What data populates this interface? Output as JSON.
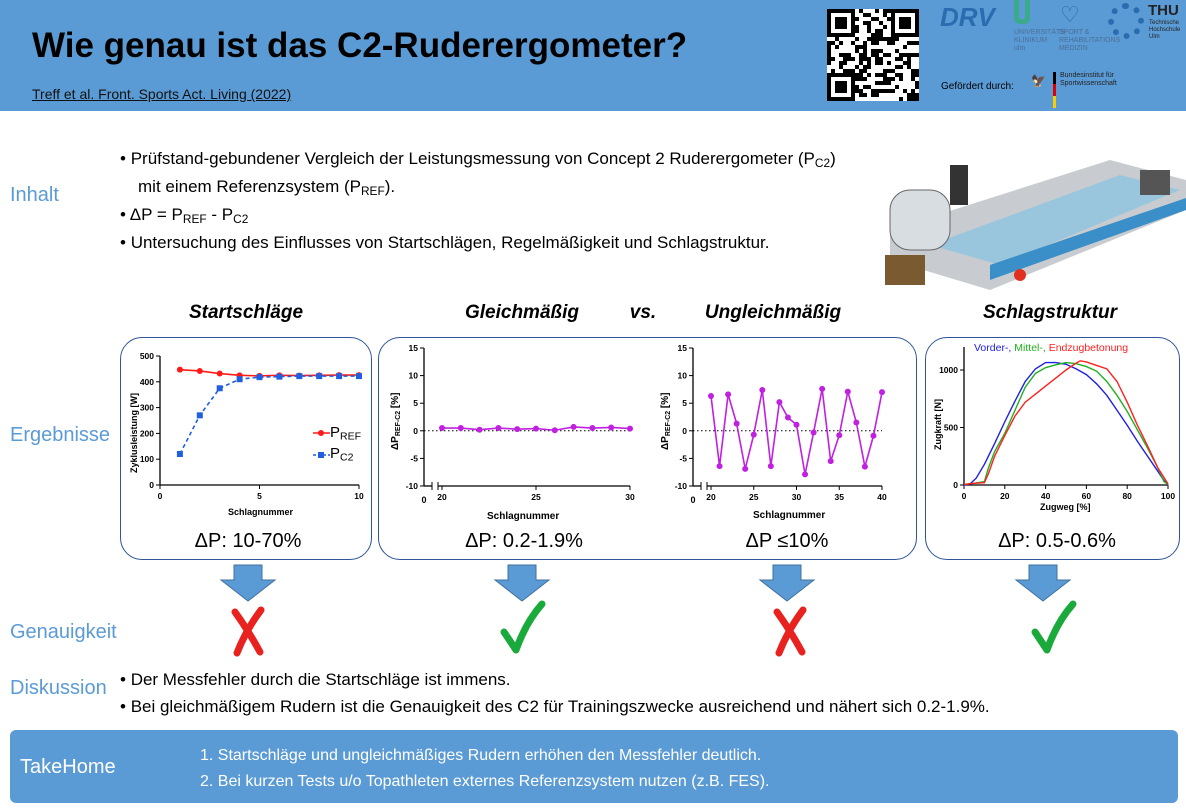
{
  "header": {
    "title": "Wie genau ist das C2-Ruderergometer?",
    "citation": "Treff et al. Front. Sports Act. Living (2022)",
    "funded_by": "Gefördert durch:",
    "logos": {
      "drv": "DRV",
      "uni": "UNIVERSITÄTS KLINIKUM ulm",
      "sport": "SPORT & REHABILITATIONS MEDIZIN",
      "thu": "THU",
      "thu_sub": "Technische Hochschule Ulm",
      "bisp": "Bundesinstitut für Sportwissenschaft"
    },
    "colors": {
      "background": "#5b9bd5"
    }
  },
  "sections": {
    "inhalt": "Inhalt",
    "ergebnisse": "Ergebnisse",
    "genauigkeit": "Genauigkeit",
    "diskussion": "Diskussion"
  },
  "inhalt": {
    "b1_a": "Prüfstand-gebundener Vergleich der Leistungsmessung von Concept 2 Ruderergometer (P",
    "b1_sub": "C2",
    "b1_b": ")",
    "b1_c": "mit einem Referenzsystem (P",
    "b1_sub2": "REF",
    "b1_d": ").",
    "b2_a": "ΔP = P",
    "b2_sub1": "REF",
    "b2_b": " - P",
    "b2_sub2": "C2",
    "b3": "Untersuchung des Einflusses von Startschlägen, Regelmäßigkeit und Schlagstruktur."
  },
  "results": {
    "titles": {
      "start": "Startschläge",
      "gleich": "Gleichmäßig",
      "vs": "vs.",
      "ungleich": "Ungleichmäßig",
      "struktur": "Schlagstruktur"
    },
    "delta": {
      "start": "ΔP: 10-70%",
      "gleich": "ΔP: 0.2-1.9%",
      "ungleich": "ΔP ≤10%",
      "struktur": "ΔP: 0.5-0.6%"
    },
    "accuracy": [
      "wrong",
      "correct",
      "wrong",
      "correct"
    ],
    "colors": {
      "wrong": "#e8231f",
      "correct": "#1aaa3c",
      "arrow": "#5b9bd5"
    }
  },
  "chart_data": [
    {
      "type": "line",
      "xlabel": "Schlagnummer",
      "ylabel": "Zyklusleistung [W]",
      "xlim": [
        0,
        10
      ],
      "ylim": [
        0,
        500
      ],
      "xticks": [
        0,
        5,
        10
      ],
      "yticks": [
        0,
        100,
        200,
        300,
        400,
        500
      ],
      "legend": "right",
      "legend_labels": [
        {
          "main": "P",
          "sub": "REF"
        },
        {
          "main": "P",
          "sub": "C2"
        }
      ],
      "x": [
        1,
        2,
        3,
        4,
        5,
        6,
        7,
        8,
        9,
        10
      ],
      "series": [
        {
          "name": "PREF",
          "color": "#ff1a1a",
          "marker": "circle",
          "dash": false,
          "values": [
            447,
            442,
            432,
            425,
            423,
            425,
            424,
            425,
            426,
            426
          ]
        },
        {
          "name": "PC2",
          "color": "#1f5fe0",
          "marker": "square",
          "dash": true,
          "values": [
            120,
            270,
            375,
            410,
            418,
            420,
            422,
            422,
            422,
            422
          ]
        }
      ]
    },
    {
      "type": "line",
      "xlabel": "Schlagnummer",
      "ylabel": {
        "main": "ΔP",
        "sub": "REF-C2",
        "suffix": " [%]"
      },
      "xlim": [
        20,
        30
      ],
      "ylim": [
        -10,
        15
      ],
      "xticks": [
        20,
        25,
        30
      ],
      "yticks": [
        -10,
        -5,
        0,
        5,
        10,
        15
      ],
      "axis_break_label": "0",
      "zero_line": true,
      "x": [
        20,
        21,
        22,
        23,
        24,
        25,
        26,
        27,
        28,
        29,
        30
      ],
      "series": [
        {
          "color": "#c020e0",
          "marker": "circle",
          "values": [
            0.5,
            0.5,
            0.2,
            0.5,
            0.3,
            0.4,
            0.1,
            0.7,
            0.5,
            0.6,
            0.4
          ]
        }
      ]
    },
    {
      "type": "line",
      "xlabel": "Schlagnummer",
      "ylabel": {
        "main": "ΔP",
        "sub": "REF-C2",
        "suffix": " [%]"
      },
      "xlim": [
        20,
        40
      ],
      "ylim": [
        -10,
        15
      ],
      "xticks": [
        20,
        25,
        30,
        35,
        40
      ],
      "yticks": [
        -10,
        -5,
        0,
        5,
        10,
        15
      ],
      "axis_break_label": "0",
      "zero_line": true,
      "x": [
        20,
        21,
        22,
        23,
        24,
        25,
        26,
        27,
        28,
        29,
        30,
        31,
        32,
        33,
        34,
        35,
        36,
        37,
        38,
        39,
        40
      ],
      "series": [
        {
          "color": "#c020e0",
          "marker": "circle",
          "values": [
            6.3,
            -6.4,
            6.6,
            1.3,
            -6.9,
            -0.7,
            7.4,
            -6.4,
            5.2,
            2.4,
            1.1,
            -7.9,
            -0.3,
            7.6,
            -5.5,
            -0.8,
            7.1,
            1.5,
            -6.5,
            -0.9,
            7.0
          ]
        }
      ]
    },
    {
      "type": "line",
      "xlabel": "Zugweg [%]",
      "ylabel": "Zugkraft [N]",
      "xlim": [
        0,
        100
      ],
      "ylim": [
        0,
        1200
      ],
      "xticks": [
        0,
        20,
        40,
        60,
        80,
        100
      ],
      "yticks": [
        0,
        500,
        1000
      ],
      "legend": "top",
      "series": [
        {
          "name": "Vorder-,",
          "color": "#2020e0",
          "x": [
            0,
            3,
            6,
            10,
            15,
            20,
            25,
            30,
            35,
            40,
            45,
            50,
            55,
            60,
            65,
            70,
            75,
            80,
            85,
            90,
            95,
            98,
            100
          ],
          "values": [
            0,
            10,
            60,
            180,
            360,
            550,
            730,
            900,
            1010,
            1065,
            1065,
            1050,
            1010,
            960,
            880,
            780,
            650,
            520,
            380,
            250,
            120,
            40,
            0
          ]
        },
        {
          "name": "Mittel-,",
          "color": "#20b020",
          "x": [
            0,
            5,
            10,
            12,
            15,
            20,
            25,
            30,
            35,
            40,
            45,
            50,
            55,
            60,
            65,
            70,
            75,
            80,
            85,
            90,
            95,
            98,
            100
          ],
          "values": [
            5,
            15,
            30,
            150,
            290,
            450,
            650,
            850,
            970,
            1020,
            1045,
            1065,
            1055,
            1030,
            990,
            900,
            780,
            640,
            480,
            320,
            150,
            30,
            5
          ]
        },
        {
          "name": "Endzugbetonung",
          "color": "#ff2020",
          "x": [
            0,
            5,
            10,
            12,
            15,
            20,
            25,
            30,
            35,
            40,
            45,
            50,
            55,
            57,
            60,
            65,
            70,
            75,
            80,
            85,
            90,
            95,
            100
          ],
          "values": [
            5,
            15,
            20,
            100,
            250,
            430,
            600,
            720,
            790,
            860,
            930,
            1000,
            1060,
            1080,
            1070,
            1040,
            1010,
            900,
            720,
            520,
            340,
            150,
            10
          ]
        }
      ]
    }
  ],
  "discussion": [
    "Der Messfehler durch die  Startschläge ist immens.",
    "Bei gleichmäßigem Rudern ist die Genauigkeit des C2 für Trainingszwecke ausreichend und nähert sich 0.2-1.9%."
  ],
  "takehome": {
    "label": "TakeHome",
    "items": [
      "1. Startschläge und ungleichmäßiges Rudern erhöhen den Messfehler deutlich.",
      "2. Bei kurzen Tests u/o Topathleten externes Referenzsystem nutzen (z.B. FES)."
    ]
  }
}
